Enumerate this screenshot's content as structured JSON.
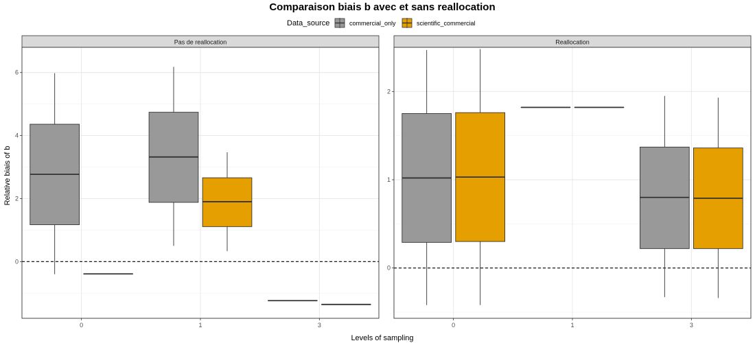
{
  "chart_data": {
    "type": "boxplot",
    "title": "Comparaison biais b avec et sans reallocation",
    "xlabel": "Levels of sampling",
    "ylabel": "Relative biais of b",
    "legend": {
      "title": "Data_source",
      "position": "top",
      "entries": [
        {
          "name": "commercial_only",
          "color": "#999999"
        },
        {
          "name": "scientific_commercial",
          "color": "#E69F00"
        }
      ]
    },
    "reference_line": {
      "y": 0,
      "style": "dashed"
    },
    "grid": true,
    "panels": [
      {
        "strip": "Pas de reallocation",
        "categories": [
          "0",
          "1",
          "3"
        ],
        "ylim": [
          -1.8,
          6.8
        ],
        "yticks": [
          0,
          2,
          4,
          6
        ],
        "series": [
          {
            "name": "commercial_only",
            "boxes": [
              {
                "x": "0",
                "min": -0.4,
                "q1": 1.17,
                "median": 2.77,
                "q3": 4.36,
                "max": 5.98
              },
              {
                "x": "1",
                "min": 0.5,
                "q1": 1.88,
                "median": 3.32,
                "q3": 4.74,
                "max": 6.18
              },
              {
                "x": "3",
                "min": -1.24,
                "q1": -1.24,
                "median": -1.24,
                "q3": -1.24,
                "max": -1.24
              }
            ]
          },
          {
            "name": "scientific_commercial",
            "boxes": [
              {
                "x": "0",
                "min": -0.39,
                "q1": -0.39,
                "median": -0.39,
                "q3": -0.39,
                "max": -0.39
              },
              {
                "x": "1",
                "min": 0.33,
                "q1": 1.11,
                "median": 1.9,
                "q3": 2.66,
                "max": 3.47
              },
              {
                "x": "3",
                "min": -1.36,
                "q1": -1.36,
                "median": -1.36,
                "q3": -1.36,
                "max": -1.36
              }
            ]
          }
        ]
      },
      {
        "strip": "Reallocation",
        "categories": [
          "0",
          "1",
          "3"
        ],
        "ylim": [
          -0.57,
          2.5
        ],
        "yticks": [
          0,
          1,
          2
        ],
        "series": [
          {
            "name": "commercial_only",
            "boxes": [
              {
                "x": "0",
                "min": -0.42,
                "q1": 0.29,
                "median": 1.02,
                "q3": 1.75,
                "max": 2.47
              },
              {
                "x": "1",
                "min": 1.82,
                "q1": 1.82,
                "median": 1.82,
                "q3": 1.82,
                "max": 1.82
              },
              {
                "x": "3",
                "min": -0.33,
                "q1": 0.22,
                "median": 0.8,
                "q3": 1.37,
                "max": 1.95
              }
            ]
          },
          {
            "name": "scientific_commercial",
            "boxes": [
              {
                "x": "0",
                "min": -0.42,
                "q1": 0.3,
                "median": 1.03,
                "q3": 1.76,
                "max": 2.48
              },
              {
                "x": "1",
                "min": 1.82,
                "q1": 1.82,
                "median": 1.82,
                "q3": 1.82,
                "max": 1.82
              },
              {
                "x": "3",
                "min": -0.34,
                "q1": 0.22,
                "median": 0.79,
                "q3": 1.36,
                "max": 1.93
              }
            ]
          }
        ]
      }
    ]
  }
}
